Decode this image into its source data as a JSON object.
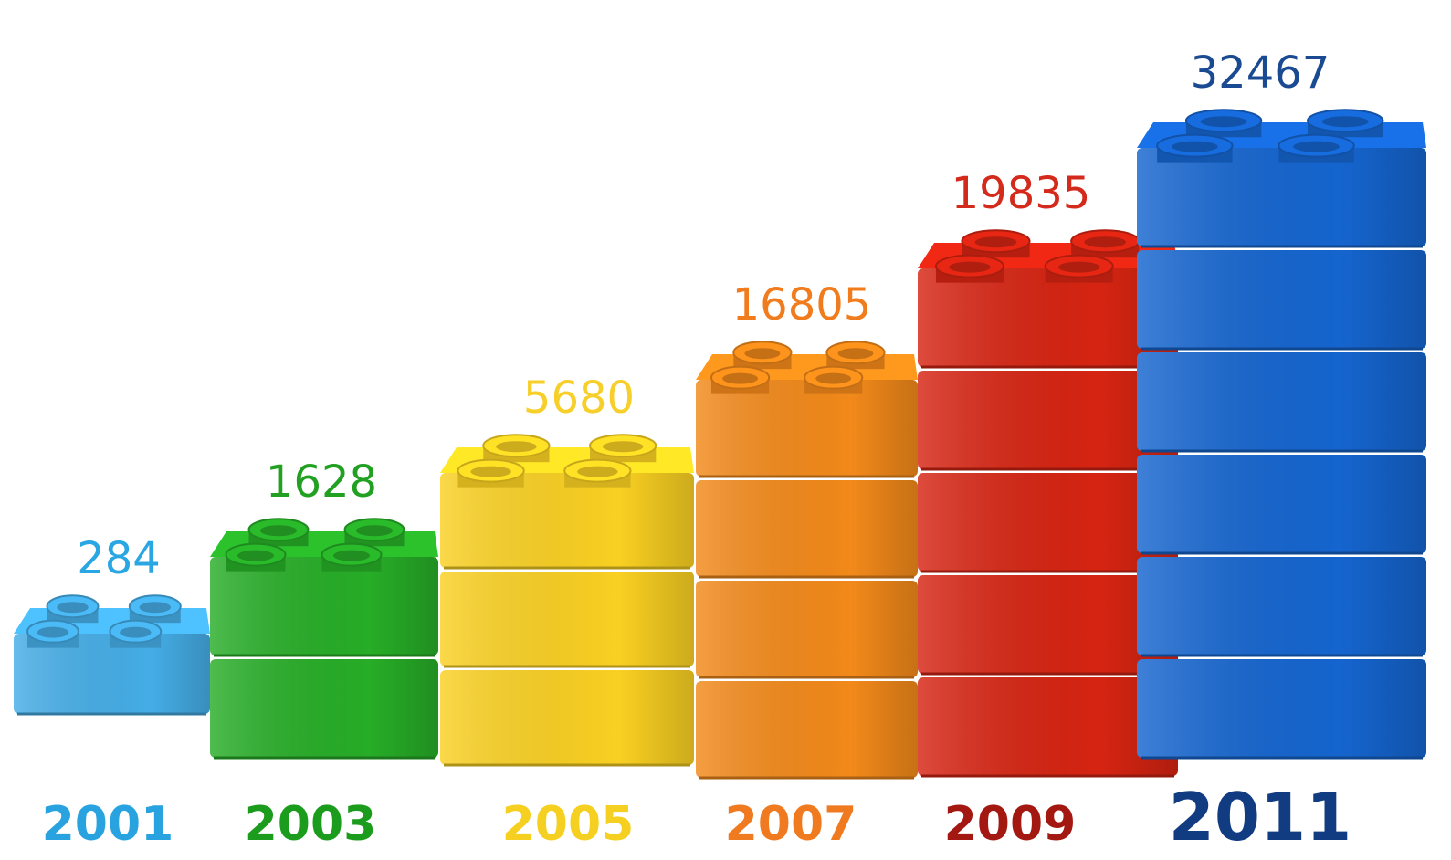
{
  "chart_data": {
    "type": "bar",
    "categories": [
      "2001",
      "2003",
      "2005",
      "2007",
      "2009",
      "2011"
    ],
    "values": [
      284,
      1628,
      5680,
      16805,
      19835,
      32467
    ],
    "colors": [
      "#45ade6",
      "#27ad27",
      "#f9d022",
      "#f2891a",
      "#d62412",
      "#1565cf"
    ]
  }
}
